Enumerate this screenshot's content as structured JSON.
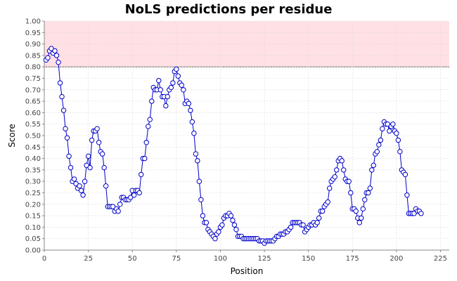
{
  "chart_data": {
    "type": "line",
    "title": "NoLS predictions per residue",
    "xlabel": "Position",
    "ylabel": "Score",
    "xlim": [
      0,
      230
    ],
    "ylim": [
      0,
      1
    ],
    "x_ticks": [
      "0",
      "25",
      "50",
      "75",
      "100",
      "125",
      "150",
      "175",
      "200",
      "225"
    ],
    "y_ticks": [
      "0.00",
      "0.05",
      "0.10",
      "0.15",
      "0.20",
      "0.25",
      "0.30",
      "0.35",
      "0.40",
      "0.45",
      "0.50",
      "0.55",
      "0.60",
      "0.65",
      "0.70",
      "0.75",
      "0.80",
      "0.85",
      "0.90",
      "0.95",
      "1.00"
    ],
    "grid": true,
    "threshold_band": {
      "from": 0.8,
      "to": 1.0,
      "color": "#ffe0e4",
      "edge_color": "#666666"
    },
    "series": [
      {
        "color": "#0000cc",
        "marker": "circle",
        "x_start": 1,
        "values": [
          0.83,
          0.84,
          0.87,
          0.88,
          0.86,
          0.87,
          0.85,
          0.82,
          0.73,
          0.67,
          0.61,
          0.53,
          0.49,
          0.41,
          0.36,
          0.3,
          0.31,
          0.29,
          0.27,
          0.28,
          0.26,
          0.24,
          0.3,
          0.37,
          0.41,
          0.36,
          0.48,
          0.52,
          0.52,
          0.53,
          0.47,
          0.43,
          0.42,
          0.36,
          0.28,
          0.19,
          0.19,
          0.19,
          0.19,
          0.17,
          0.18,
          0.17,
          0.2,
          0.23,
          0.23,
          0.22,
          0.22,
          0.22,
          0.23,
          0.26,
          0.24,
          0.26,
          0.26,
          0.25,
          0.33,
          0.4,
          0.4,
          0.47,
          0.54,
          0.57,
          0.65,
          0.71,
          0.7,
          0.7,
          0.74,
          0.7,
          0.67,
          0.67,
          0.63,
          0.67,
          0.7,
          0.71,
          0.73,
          0.78,
          0.79,
          0.76,
          0.73,
          0.72,
          0.7,
          0.64,
          0.65,
          0.64,
          0.61,
          0.56,
          0.51,
          0.42,
          0.39,
          0.3,
          0.22,
          0.15,
          0.12,
          0.12,
          0.09,
          0.08,
          0.07,
          0.06,
          0.05,
          0.07,
          0.08,
          0.1,
          0.11,
          0.14,
          0.15,
          0.15,
          0.16,
          0.15,
          0.13,
          0.11,
          0.09,
          0.06,
          0.06,
          0.06,
          0.05,
          0.05,
          0.05,
          0.05,
          0.05,
          0.05,
          0.05,
          0.05,
          0.05,
          0.04,
          0.04,
          0.04,
          0.03,
          0.04,
          0.04,
          0.04,
          0.04,
          0.04,
          0.05,
          0.06,
          0.06,
          0.07,
          0.07,
          0.07,
          0.08,
          0.08,
          0.09,
          0.1,
          0.12,
          0.12,
          0.12,
          0.12,
          0.12,
          0.11,
          0.11,
          0.08,
          0.09,
          0.1,
          0.11,
          0.11,
          0.12,
          0.11,
          0.12,
          0.14,
          0.17,
          0.17,
          0.19,
          0.2,
          0.21,
          0.27,
          0.3,
          0.31,
          0.32,
          0.35,
          0.39,
          0.4,
          0.39,
          0.35,
          0.31,
          0.3,
          0.3,
          0.25,
          0.18,
          0.18,
          0.17,
          0.14,
          0.12,
          0.14,
          0.18,
          0.22,
          0.25,
          0.25,
          0.27,
          0.35,
          0.37,
          0.42,
          0.43,
          0.46,
          0.48,
          0.53,
          0.56,
          0.55,
          0.55,
          0.52,
          0.54,
          0.55,
          0.52,
          0.51,
          0.48,
          0.43,
          0.35,
          0.34,
          0.33,
          0.24,
          0.16,
          0.16,
          0.16,
          0.16,
          0.18,
          0.17,
          0.17,
          0.16
        ]
      }
    ]
  }
}
